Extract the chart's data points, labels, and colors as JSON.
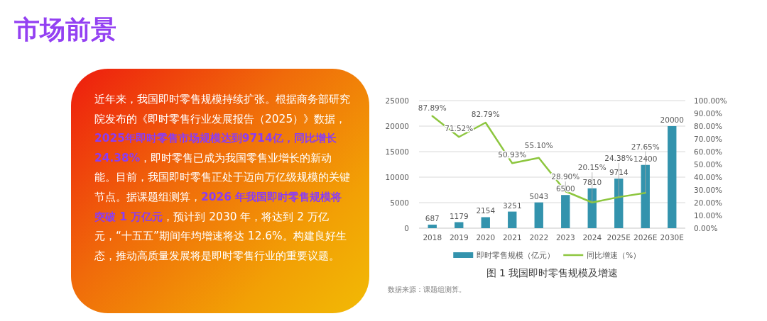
{
  "chart_data": [
    {
      "type": "other",
      "title": "市场前景",
      "annotations": [
        "近年来，我国即时零售规模持续扩张。根据商务部研究院发布的《即时零售行业发展报告（2025）》数据，",
        "2025年即时零售市场规模达到9714亿，同比增长 24.38%",
        "，即时零售已成为我国零售业增长的新动能。目前，我国即时零售正处于迈向万亿级规模的关键节点。据课题组测算，",
        "2026 年我国即时零售规模将突破 1 万亿元",
        "，预计到 2030 年，将达到 2 万亿元，“十五五”期间年均增速将达 12.6%。构建良好生态，推动高质量发展将是即时零售行业的重要议题。"
      ]
    },
    {
      "type": "bar",
      "title": "图 1  我国即时零售规模及增速",
      "annotations": [
        "数据来源：课题组测算。"
      ],
      "categories": [
        "2018",
        "2019",
        "2020",
        "2021",
        "2022",
        "2023",
        "2024",
        "2025E",
        "2026E",
        "2030E"
      ],
      "series": [
        {
          "name": "即时零售规模（亿元）",
          "type": "bar",
          "color": "#3393ad",
          "values": [
            687,
            1179,
            2154,
            3251,
            5043,
            6500,
            7810,
            9714,
            12400,
            20000
          ],
          "value_labels": [
            "687",
            "1179",
            "2154",
            "3251",
            "5043",
            "6500",
            "7810",
            "9714",
            "12400",
            "20000"
          ]
        },
        {
          "name": "同比增速（%）",
          "type": "line",
          "axis": "y2",
          "color": "#8dc63f",
          "values": [
            87.89,
            71.52,
            82.79,
            50.93,
            55.1,
            28.9,
            20.15,
            24.38,
            27.65,
            null
          ],
          "value_labels": [
            "87.89%",
            "71.52%",
            "82.79%",
            "50.93%",
            "55.10%",
            "28.90%",
            "20.15%",
            "24.38%",
            "27.65%",
            null
          ]
        }
      ],
      "ylim": [
        0,
        25000
      ],
      "yticks": [
        0,
        5000,
        10000,
        15000,
        20000,
        25000
      ],
      "y2lim": [
        0,
        100
      ],
      "y2ticks": [
        {
          "value": 0,
          "label": "0.00%"
        },
        {
          "value": 10,
          "label": "10.00%"
        },
        {
          "value": 20,
          "label": "20.00%"
        },
        {
          "value": 30,
          "label": "30.00%"
        },
        {
          "value": 40,
          "label": "40.00%"
        },
        {
          "value": 50,
          "label": "50.00%"
        },
        {
          "value": 60,
          "label": "60.00%"
        },
        {
          "value": 70,
          "label": "70.00%"
        },
        {
          "value": 80,
          "label": "80.00%"
        },
        {
          "value": 90,
          "label": "90.00%"
        },
        {
          "value": 100,
          "label": "100.00%"
        }
      ],
      "grid": "y",
      "legend": "bottom",
      "line_style": "solid"
    }
  ]
}
